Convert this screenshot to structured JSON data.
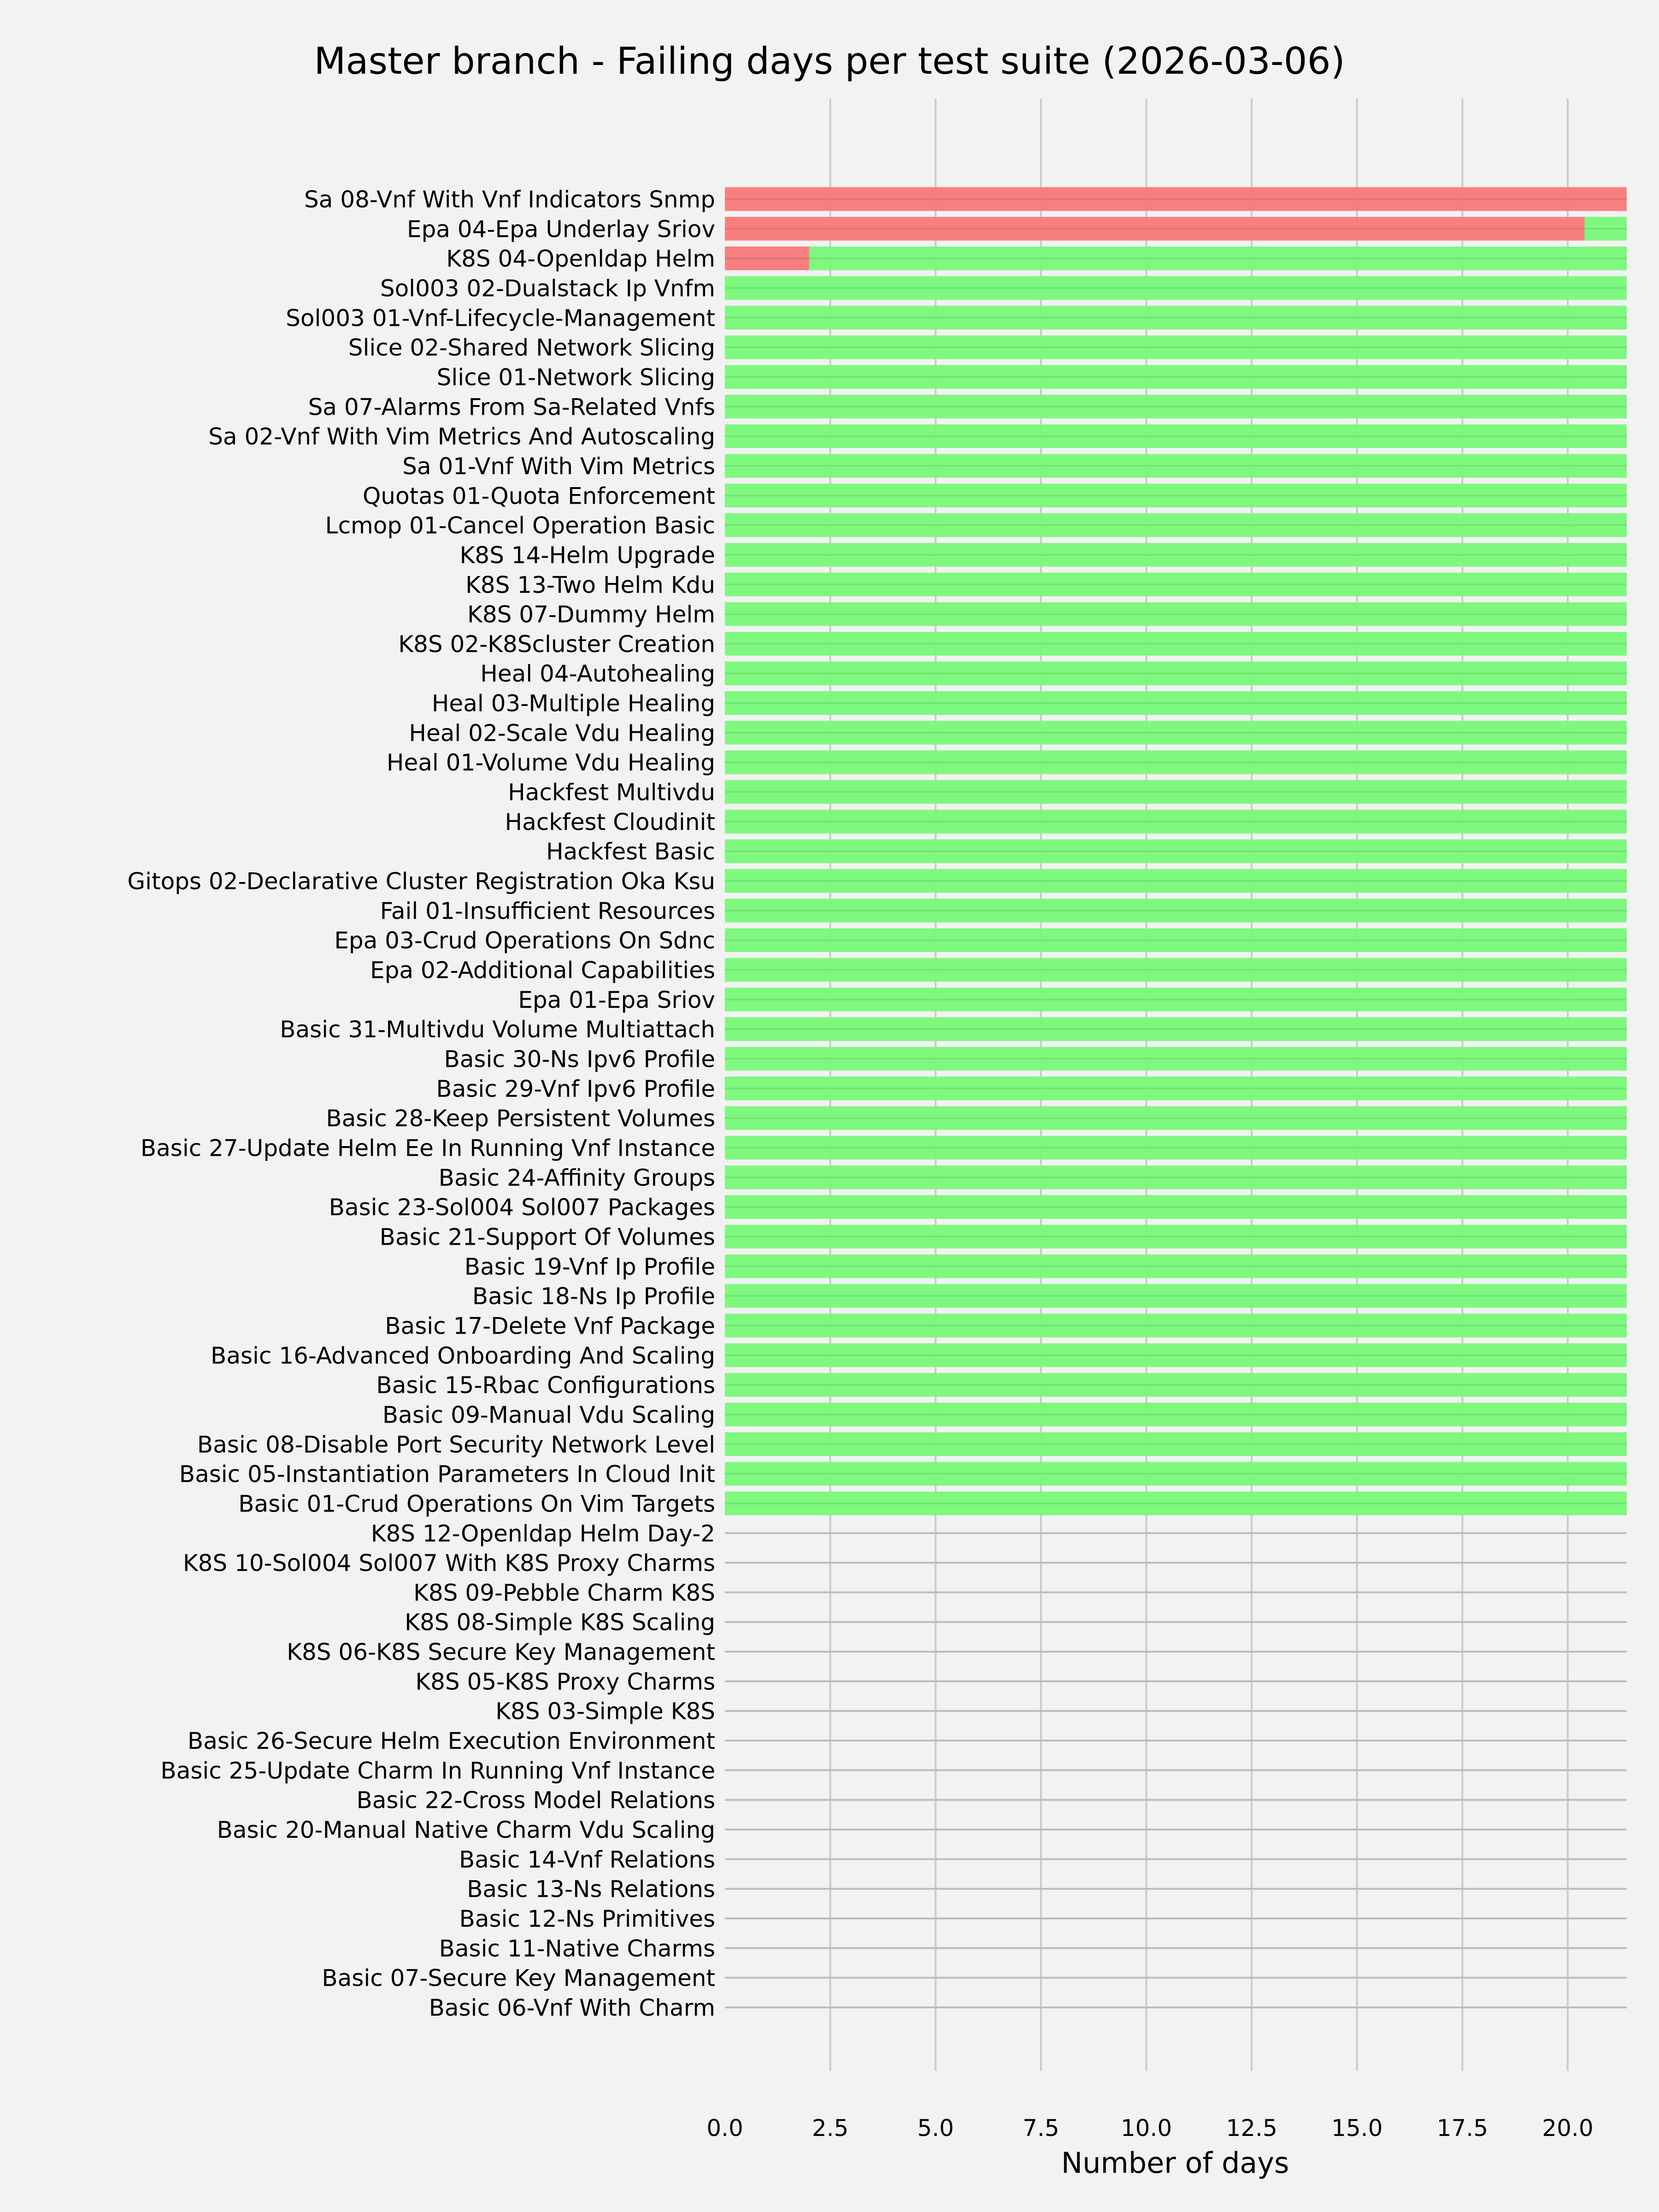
{
  "chart_data": {
    "type": "bar",
    "orientation": "horizontal",
    "stacked": true,
    "title": "Master branch - Failing days per test suite (2026-03-06)",
    "xlabel": "Number of days",
    "ylabel": "",
    "xlim": [
      0,
      21.4
    ],
    "xticks": [
      "0.0",
      "2.5",
      "5.0",
      "7.5",
      "10.0",
      "12.5",
      "15.0",
      "17.5",
      "20.0"
    ],
    "grid": true,
    "colors": {
      "failing": "#f87878",
      "passing": "#78f878",
      "background": "#f2f2f2",
      "grid": "#cbcbcb"
    },
    "categories": [
      "Sa 08-Vnf With Vnf Indicators Snmp",
      "Epa 04-Epa Underlay Sriov",
      "K8S 04-Openldap Helm",
      "Sol003 02-Dualstack Ip Vnfm",
      "Sol003 01-Vnf-Lifecycle-Management",
      "Slice 02-Shared Network Slicing",
      "Slice 01-Network Slicing",
      "Sa 07-Alarms From Sa-Related Vnfs",
      "Sa 02-Vnf With Vim Metrics And Autoscaling",
      "Sa 01-Vnf With Vim Metrics",
      "Quotas 01-Quota Enforcement",
      "Lcmop 01-Cancel Operation Basic",
      "K8S 14-Helm Upgrade",
      "K8S 13-Two Helm Kdu",
      "K8S 07-Dummy Helm",
      "K8S 02-K8Scluster Creation",
      "Heal 04-Autohealing",
      "Heal 03-Multiple Healing",
      "Heal 02-Scale Vdu Healing",
      "Heal 01-Volume Vdu Healing",
      "Hackfest Multivdu",
      "Hackfest Cloudinit",
      "Hackfest Basic",
      "Gitops 02-Declarative Cluster Registration Oka Ksu",
      "Fail 01-Insufficient Resources",
      "Epa 03-Crud Operations On Sdnc",
      "Epa 02-Additional Capabilities",
      "Epa 01-Epa Sriov",
      "Basic 31-Multivdu Volume Multiattach",
      "Basic 30-Ns Ipv6 Profile",
      "Basic 29-Vnf Ipv6 Profile",
      "Basic 28-Keep Persistent Volumes",
      "Basic 27-Update Helm Ee In Running Vnf Instance",
      "Basic 24-Affinity Groups",
      "Basic 23-Sol004 Sol007 Packages",
      "Basic 21-Support Of Volumes",
      "Basic 19-Vnf Ip Profile",
      "Basic 18-Ns Ip Profile",
      "Basic 17-Delete Vnf Package",
      "Basic 16-Advanced Onboarding And Scaling",
      "Basic 15-Rbac Configurations",
      "Basic 09-Manual Vdu Scaling",
      "Basic 08-Disable Port Security Network Level",
      "Basic 05-Instantiation Parameters In Cloud Init",
      "Basic 01-Crud Operations On Vim Targets",
      "K8S 12-Openldap Helm Day-2",
      "K8S 10-Sol004 Sol007 With K8S Proxy Charms",
      "K8S 09-Pebble Charm K8S",
      "K8S 08-Simple K8S Scaling",
      "K8S 06-K8S Secure Key Management",
      "K8S 05-K8S Proxy Charms",
      "K8S 03-Simple K8S",
      "Basic 26-Secure Helm Execution Environment",
      "Basic 25-Update Charm In Running Vnf Instance",
      "Basic 22-Cross Model Relations",
      "Basic 20-Manual Native Charm Vdu Scaling",
      "Basic 14-Vnf Relations",
      "Basic 13-Ns Relations",
      "Basic 12-Ns Primitives",
      "Basic 11-Native Charms",
      "Basic 07-Secure Key Management",
      "Basic 06-Vnf With Charm"
    ],
    "series": [
      {
        "key": "failing",
        "values": [
          21.4,
          20.4,
          2,
          0,
          0,
          0,
          0,
          0,
          0,
          0,
          0,
          0,
          0,
          0,
          0,
          0,
          0,
          0,
          0,
          0,
          0,
          0,
          0,
          0,
          0,
          0,
          0,
          0,
          0,
          0,
          0,
          0,
          0,
          0,
          0,
          0,
          0,
          0,
          0,
          0,
          0,
          0,
          0,
          0,
          0,
          0,
          0,
          0,
          0,
          0,
          0,
          0,
          0,
          0,
          0,
          0,
          0,
          0,
          0,
          0,
          0,
          0
        ]
      },
      {
        "key": "passing",
        "values": [
          0,
          1.0,
          19.4,
          21.4,
          21.4,
          21.4,
          21.4,
          21.4,
          21.4,
          21.4,
          21.4,
          21.4,
          21.4,
          21.4,
          21.4,
          21.4,
          21.4,
          21.4,
          21.4,
          21.4,
          21.4,
          21.4,
          21.4,
          21.4,
          21.4,
          21.4,
          21.4,
          21.4,
          21.4,
          21.4,
          21.4,
          21.4,
          21.4,
          21.4,
          21.4,
          21.4,
          21.4,
          21.4,
          21.4,
          21.4,
          21.4,
          21.4,
          21.4,
          21.4,
          21.4,
          0,
          0,
          0,
          0,
          0,
          0,
          0,
          0,
          0,
          0,
          0,
          0,
          0,
          0,
          0,
          0,
          0
        ]
      }
    ]
  }
}
